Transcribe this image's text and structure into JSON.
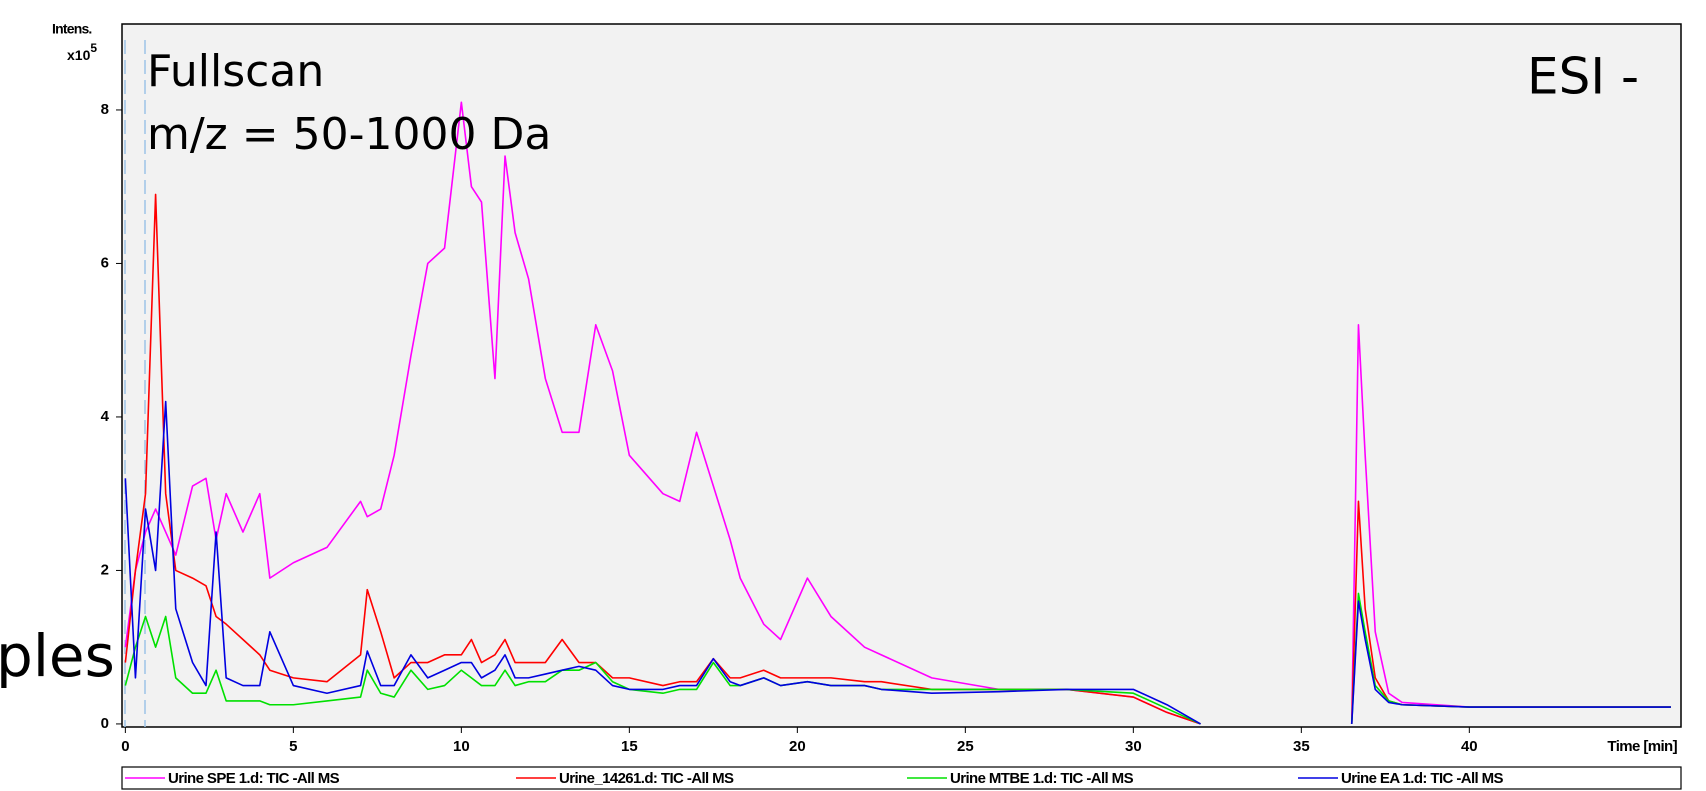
{
  "chart_data": {
    "type": "line",
    "y_label": "Intens.",
    "y_unit": "x10",
    "y_exponent": "5",
    "x_label": "Time [min]",
    "annotations": [
      "Fullscan",
      "m/z = 50-1000 Da",
      "ESI -",
      "ples"
    ],
    "x": [
      0,
      0.3,
      0.6,
      0.9,
      1.2,
      1.5,
      2,
      2.4,
      2.7,
      3,
      3.5,
      4,
      4.3,
      5,
      6,
      7,
      7.2,
      7.6,
      8,
      8.5,
      9,
      9.5,
      10,
      10.3,
      10.6,
      11,
      11.3,
      11.6,
      12,
      12.5,
      13,
      13.5,
      14,
      14.5,
      15,
      16,
      16.5,
      17,
      17.5,
      18,
      18.3,
      19,
      19.5,
      20.3,
      21,
      22,
      22.5,
      24,
      26,
      28,
      30,
      31,
      32,
      34,
      36.5,
      36.7,
      36.9,
      37.2,
      37.6,
      38,
      40,
      45,
      46
    ],
    "series": [
      {
        "name": "Urine SPE 1.d: TIC -All MS",
        "color": "#ff00ff",
        "values": [
          1.0,
          2.0,
          2.5,
          2.8,
          2.5,
          2.2,
          3.1,
          3.2,
          2.4,
          3.0,
          2.5,
          3.0,
          1.9,
          2.1,
          2.3,
          2.9,
          2.7,
          2.8,
          3.5,
          4.8,
          6.0,
          6.2,
          8.1,
          7.0,
          6.8,
          4.5,
          7.4,
          6.4,
          5.8,
          4.5,
          3.8,
          3.8,
          5.2,
          4.6,
          3.5,
          3.0,
          2.9,
          3.8,
          3.1,
          2.4,
          1.9,
          1.3,
          1.1,
          1.9,
          1.4,
          1.0,
          0.9,
          0.6,
          0.45,
          0.45,
          0.35,
          0.15,
          0,
          null,
          0,
          5.2,
          3.5,
          1.2,
          0.4,
          0.28,
          0.22,
          0.22,
          0.22
        ]
      },
      {
        "name": "Urine_14261.d: TIC -All MS",
        "color": "#ff0000",
        "values": [
          0.8,
          2.0,
          3.0,
          6.9,
          3.0,
          2.0,
          1.9,
          1.8,
          1.4,
          1.3,
          1.1,
          0.9,
          0.7,
          0.6,
          0.55,
          0.9,
          1.75,
          1.2,
          0.6,
          0.8,
          0.8,
          0.9,
          0.9,
          1.1,
          0.8,
          0.9,
          1.1,
          0.8,
          0.8,
          0.8,
          1.1,
          0.8,
          0.8,
          0.6,
          0.6,
          0.5,
          0.55,
          0.55,
          0.85,
          0.6,
          0.6,
          0.7,
          0.6,
          0.6,
          0.6,
          0.55,
          0.55,
          0.45,
          0.45,
          0.45,
          0.35,
          0.15,
          0,
          null,
          0,
          2.9,
          1.5,
          0.6,
          0.3,
          0.25,
          0.22,
          0.22,
          0.22
        ]
      },
      {
        "name": "Urine MTBE 1.d: TIC -All MS",
        "color": "#00e000",
        "values": [
          0.5,
          1.0,
          1.4,
          1.0,
          1.4,
          0.6,
          0.4,
          0.4,
          0.7,
          0.3,
          0.3,
          0.3,
          0.25,
          0.25,
          0.3,
          0.35,
          0.7,
          0.4,
          0.35,
          0.7,
          0.45,
          0.5,
          0.7,
          0.6,
          0.5,
          0.5,
          0.7,
          0.5,
          0.55,
          0.55,
          0.7,
          0.7,
          0.8,
          0.55,
          0.45,
          0.4,
          0.45,
          0.45,
          0.8,
          0.5,
          0.5,
          0.6,
          0.5,
          0.55,
          0.5,
          0.5,
          0.45,
          0.45,
          0.45,
          0.45,
          0.4,
          0.2,
          0,
          null,
          0,
          1.7,
          1.2,
          0.5,
          0.3,
          0.25,
          0.22,
          0.22,
          0.22
        ]
      },
      {
        "name": "Urine EA 1.d: TIC -All MS",
        "color": "#0000e0",
        "values": [
          3.2,
          0.6,
          2.8,
          2.0,
          4.2,
          1.5,
          0.8,
          0.5,
          2.5,
          0.6,
          0.5,
          0.5,
          1.2,
          0.5,
          0.4,
          0.5,
          0.95,
          0.5,
          0.5,
          0.9,
          0.6,
          0.7,
          0.8,
          0.8,
          0.6,
          0.7,
          0.9,
          0.6,
          0.6,
          0.65,
          0.7,
          0.75,
          0.7,
          0.5,
          0.45,
          0.45,
          0.5,
          0.5,
          0.85,
          0.55,
          0.5,
          0.6,
          0.5,
          0.55,
          0.5,
          0.5,
          0.45,
          0.4,
          0.42,
          0.45,
          0.45,
          0.25,
          0,
          null,
          0,
          1.6,
          1.1,
          0.45,
          0.28,
          0.25,
          0.22,
          0.22,
          0.22
        ]
      }
    ],
    "xlim": [
      -0.1,
      46.3
    ],
    "ylim": [
      -0.04,
      9.12
    ],
    "xticks": [
      0,
      5,
      10,
      15,
      20,
      25,
      30,
      35,
      40
    ],
    "yticks": [
      0,
      2,
      4,
      6,
      8
    ],
    "grid": false,
    "background": "#f2f2f2"
  }
}
